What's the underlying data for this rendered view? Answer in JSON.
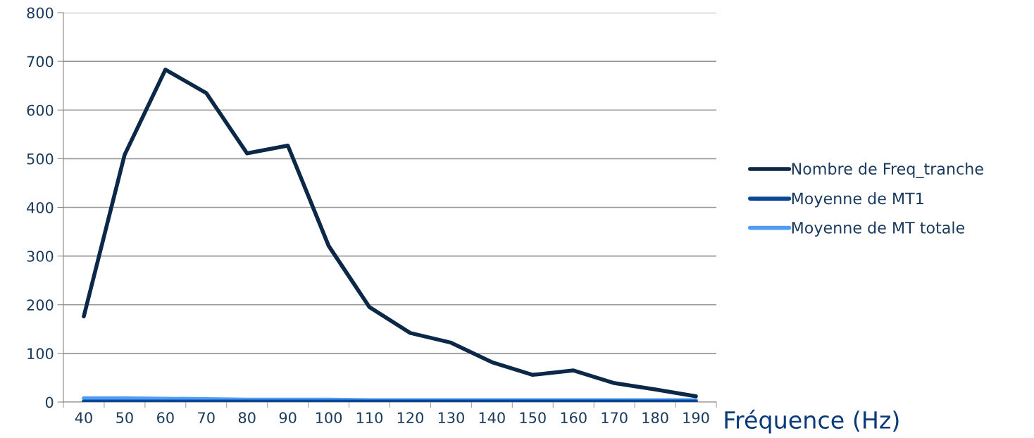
{
  "chart_data": {
    "type": "line",
    "xlabel": "Fréquence (Hz)",
    "categories": [
      "40",
      "50",
      "60",
      "70",
      "80",
      "90",
      "100",
      "110",
      "120",
      "130",
      "140",
      "150",
      "160",
      "170",
      "180",
      "190"
    ],
    "series": [
      {
        "name": "Nombre de Freq_tranche",
        "color": "#0c2848",
        "values": [
          176,
          508,
          683,
          635,
          511,
          527,
          321,
          195,
          142,
          122,
          82,
          56,
          65,
          39,
          26,
          12
        ]
      },
      {
        "name": "Moyenne de MT1",
        "color": "#0b4596",
        "values": [
          1,
          1,
          1,
          1,
          1,
          1,
          1,
          1,
          1,
          1,
          1,
          1,
          1,
          1,
          1,
          1
        ]
      },
      {
        "name": "Moyenne de MT totale",
        "color": "#4f9cf5",
        "values": [
          8,
          8,
          7,
          6,
          5,
          5,
          5,
          4,
          4,
          4,
          4,
          4,
          4,
          4,
          4,
          4
        ]
      }
    ],
    "ylim": [
      0,
      800
    ],
    "yticks": [
      0,
      100,
      200,
      300,
      400,
      500,
      600,
      700,
      800
    ],
    "grid": "y",
    "legend": "right",
    "marker": "none",
    "line_style": "solid"
  }
}
